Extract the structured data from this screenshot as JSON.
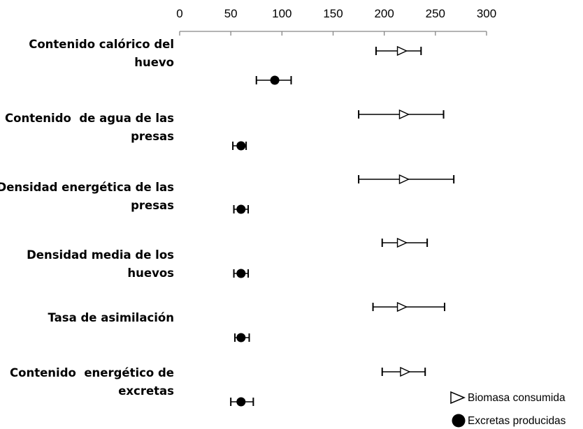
{
  "chart_data": {
    "type": "scatter",
    "title": "",
    "xlabel": "",
    "ylabel": "",
    "xlim": [
      0,
      300
    ],
    "xticks": [
      "0",
      "50",
      "100",
      "150",
      "200",
      "250",
      "300"
    ],
    "grid": false,
    "legend_position": "bottom-right",
    "categories": [
      {
        "lines": [
          "Contenido calórico del",
          "huevo"
        ]
      },
      {
        "lines": [
          "Contenido  de agua de las",
          "presas"
        ]
      },
      {
        "lines": [
          "Densidad energética de las",
          "presas"
        ]
      },
      {
        "lines": [
          "Densidad media de los",
          "huevos"
        ]
      },
      {
        "lines": [
          "Tasa de asimilación"
        ]
      },
      {
        "lines": [
          "Contenido  energético de",
          "excretas"
        ]
      }
    ],
    "series": [
      {
        "name": "Biomasa consumida",
        "marker": "open-triangle",
        "points": [
          {
            "value": 217,
            "low": 192,
            "high": 236
          },
          {
            "value": 219,
            "low": 175,
            "high": 258
          },
          {
            "value": 219,
            "low": 175,
            "high": 268
          },
          {
            "value": 217,
            "low": 198,
            "high": 242
          },
          {
            "value": 217,
            "low": 189,
            "high": 259
          },
          {
            "value": 220,
            "low": 198,
            "high": 240
          }
        ]
      },
      {
        "name": "Excretas producidas",
        "marker": "filled-circle",
        "points": [
          {
            "value": 93,
            "low": 75,
            "high": 109
          },
          {
            "value": 60,
            "low": 52,
            "high": 65
          },
          {
            "value": 60,
            "low": 53,
            "high": 67
          },
          {
            "value": 60,
            "low": 53,
            "high": 67
          },
          {
            "value": 60,
            "low": 54,
            "high": 68
          },
          {
            "value": 60,
            "low": 50,
            "high": 72
          }
        ]
      }
    ]
  }
}
